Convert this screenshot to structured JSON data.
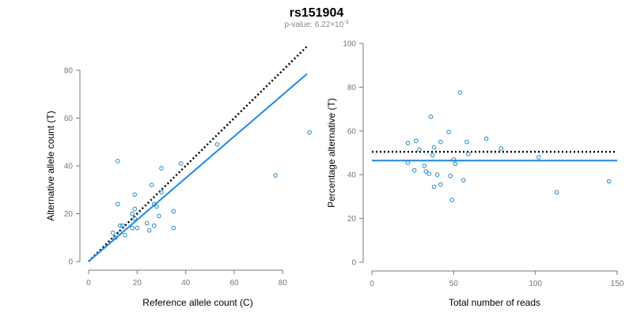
{
  "figure": {
    "title": "rs151904",
    "pvalue_label": "p-value: 6.22×10",
    "pvalue_exponent": "-3"
  },
  "colors": {
    "points": "#1E88C9",
    "fit_line": "#1E88E5",
    "reference_line": "#000000",
    "axis": "#777777"
  },
  "chart_data": [
    {
      "type": "scatter",
      "id": "left",
      "xlabel": "Reference allele count (C)",
      "ylabel": "Alternative allele count (T)",
      "xlim": [
        0,
        90
      ],
      "ylim": [
        0,
        80
      ],
      "xticks": [
        0,
        20,
        40,
        60,
        80
      ],
      "yticks": [
        0,
        20,
        40,
        60,
        80
      ],
      "grid": false,
      "x": [
        10,
        11,
        12,
        12,
        13,
        13,
        14,
        15,
        18,
        18,
        19,
        19,
        19,
        20,
        24,
        25,
        26,
        27,
        27,
        28,
        29,
        30,
        30,
        35,
        35,
        38,
        53,
        77,
        91
      ],
      "y": [
        12,
        10,
        42,
        24,
        15,
        12,
        15,
        11,
        20,
        14,
        28,
        22,
        18,
        14,
        16,
        13,
        32,
        24,
        15,
        23,
        19,
        39,
        29,
        21,
        14,
        41,
        49,
        36,
        54
      ],
      "lines": [
        {
          "name": "expected",
          "style": "dotted",
          "x": [
            0,
            90
          ],
          "y": [
            0,
            90
          ]
        },
        {
          "name": "fit",
          "style": "solid",
          "x": [
            0,
            90
          ],
          "y": [
            0,
            78.5
          ]
        }
      ]
    },
    {
      "type": "scatter",
      "id": "right",
      "xlabel": "Total number of reads",
      "ylabel": "Percentage alternative (T)",
      "xlim": [
        0,
        150
      ],
      "ylim": [
        0,
        100
      ],
      "xticks": [
        0,
        50,
        100,
        150
      ],
      "yticks": [
        0,
        20,
        40,
        60,
        80,
        100
      ],
      "grid": false,
      "x": [
        22,
        22,
        26,
        27,
        29,
        32,
        33,
        35,
        36,
        37,
        38,
        38,
        40,
        42,
        42,
        47,
        48,
        49,
        50,
        51,
        54,
        56,
        58,
        59,
        70,
        79,
        102,
        113,
        145
      ],
      "y": [
        54.5,
        45.5,
        42,
        55.5,
        51.5,
        44,
        41.5,
        40.5,
        66.5,
        49,
        52.5,
        34.5,
        40,
        35.5,
        55,
        59.5,
        39.5,
        28.5,
        47,
        45,
        77.5,
        37.5,
        55,
        49.5,
        56.5,
        52,
        48,
        32,
        37
      ],
      "lines": [
        {
          "name": "expected",
          "style": "dotted",
          "x": [
            0,
            150
          ],
          "y": [
            50.5,
            50.5
          ]
        },
        {
          "name": "fit",
          "style": "solid",
          "x": [
            0,
            150
          ],
          "y": [
            46.5,
            46.5
          ]
        }
      ]
    }
  ]
}
